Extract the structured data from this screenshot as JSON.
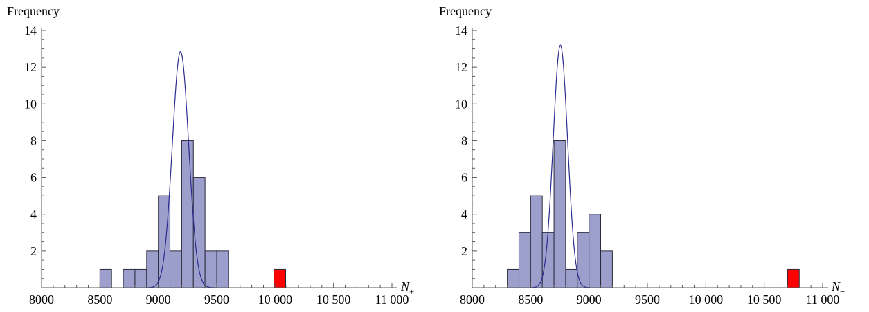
{
  "chart_data": [
    {
      "type": "bar",
      "ylabel": "Frequency",
      "xlabel": "N",
      "xlabel_sub": "+",
      "xlim": [
        8000,
        11000
      ],
      "ylim": [
        0,
        14
      ],
      "x_ticks": [
        8000,
        8500,
        9000,
        9500,
        10000,
        10500,
        11000
      ],
      "x_tick_labels": [
        "8000",
        "8500",
        "9000",
        "9500",
        "10 000",
        "10 500",
        "11 000"
      ],
      "y_ticks": [
        2,
        4,
        6,
        8,
        10,
        12,
        14
      ],
      "y_tick_labels": [
        "2",
        "4",
        "6",
        "8",
        "10",
        "12",
        "14"
      ],
      "bin_width": 100,
      "bins": [
        {
          "x": 8500,
          "count": 1
        },
        {
          "x": 8700,
          "count": 1
        },
        {
          "x": 8800,
          "count": 1
        },
        {
          "x": 8900,
          "count": 2
        },
        {
          "x": 9000,
          "count": 5
        },
        {
          "x": 9100,
          "count": 2
        },
        {
          "x": 9200,
          "count": 8
        },
        {
          "x": 9300,
          "count": 6
        },
        {
          "x": 9400,
          "count": 2
        },
        {
          "x": 9500,
          "count": 2
        }
      ],
      "highlight_bins": [
        {
          "x": 9990,
          "count": 1
        }
      ],
      "fit": {
        "mean": 9190,
        "sigma": 70,
        "peak": 12.85
      },
      "colors": {
        "bar": "#9c9fcc",
        "highlight": "#ff0000",
        "fit": "#2b2b8f"
      }
    },
    {
      "type": "bar",
      "ylabel": "Frequency",
      "xlabel": "N",
      "xlabel_sub": "−",
      "xlim": [
        8000,
        11000
      ],
      "ylim": [
        0,
        14
      ],
      "x_ticks": [
        8000,
        8500,
        9000,
        9500,
        10000,
        10500,
        11000
      ],
      "x_tick_labels": [
        "8000",
        "8500",
        "9000",
        "9500",
        "10 000",
        "10 500",
        "11 000"
      ],
      "y_ticks": [
        2,
        4,
        6,
        8,
        10,
        12,
        14
      ],
      "y_tick_labels": [
        "2",
        "4",
        "6",
        "8",
        "10",
        "12",
        "14"
      ],
      "bin_width": 100,
      "bins": [
        {
          "x": 8300,
          "count": 1
        },
        {
          "x": 8400,
          "count": 3
        },
        {
          "x": 8500,
          "count": 5
        },
        {
          "x": 8600,
          "count": 3
        },
        {
          "x": 8700,
          "count": 8
        },
        {
          "x": 8800,
          "count": 1
        },
        {
          "x": 8900,
          "count": 3
        },
        {
          "x": 9000,
          "count": 4
        },
        {
          "x": 9100,
          "count": 2
        }
      ],
      "highlight_bins": [
        {
          "x": 10700,
          "count": 1
        }
      ],
      "fit": {
        "mean": 8755,
        "sigma": 62,
        "peak": 13.2
      },
      "colors": {
        "bar": "#9c9fcc",
        "highlight": "#ff0000",
        "fit": "#2b2b8f"
      }
    }
  ]
}
